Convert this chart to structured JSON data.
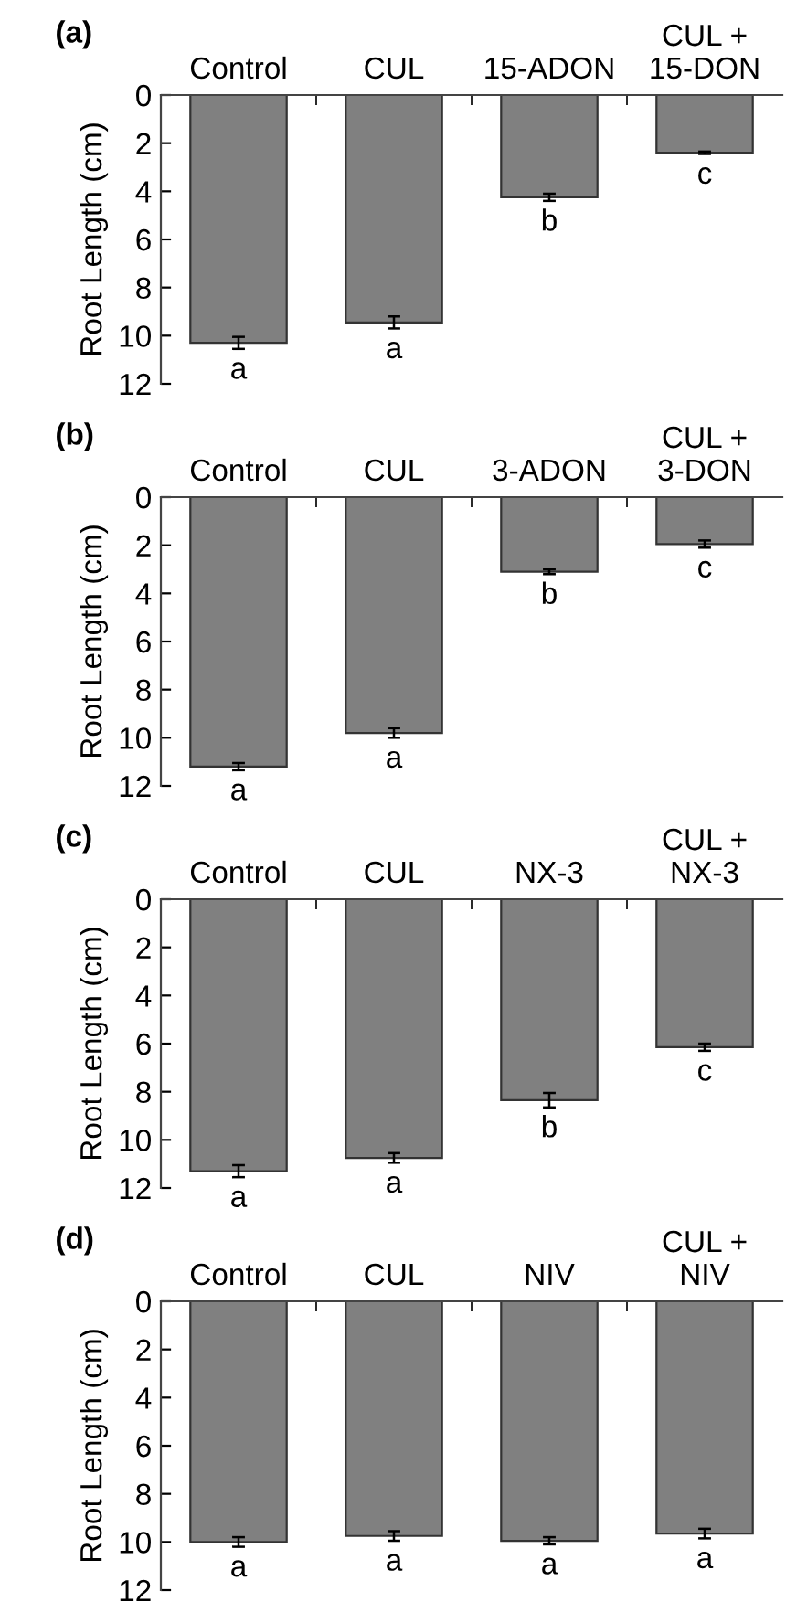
{
  "chart_data": [
    {
      "type": "bar",
      "title": "(a)",
      "ylabel": "Root Length (cm)",
      "categories": [
        "Control",
        "CUL",
        "15-ADON",
        "CUL +\n15-DON"
      ],
      "values": [
        10.3,
        9.45,
        4.25,
        2.4
      ],
      "errors": [
        0.25,
        0.25,
        0.15,
        0.05
      ],
      "color": "#808080",
      "ylim": [
        12,
        0
      ],
      "yticks": [
        0,
        2,
        4,
        6,
        8,
        10,
        12
      ],
      "grid": false,
      "annotations": [
        {
          "text": "a",
          "x": "Control",
          "y": 10.3
        },
        {
          "text": "a",
          "x": "CUL",
          "y": 9.45
        },
        {
          "text": "b",
          "x": "15-ADON",
          "y": 4.25
        },
        {
          "text": "c",
          "x": "CUL +\n15-DON",
          "y": 2.4
        }
      ]
    },
    {
      "type": "bar",
      "title": "(b)",
      "ylabel": "Root Length (cm)",
      "categories": [
        "Control",
        "CUL",
        "3-ADON",
        "CUL +\n3-DON"
      ],
      "values": [
        11.2,
        9.8,
        3.1,
        1.95
      ],
      "errors": [
        0.15,
        0.2,
        0.1,
        0.15
      ],
      "color": "#808080",
      "ylim": [
        12,
        0
      ],
      "yticks": [
        0,
        2,
        4,
        6,
        8,
        10,
        12
      ],
      "grid": false,
      "annotations": [
        {
          "text": "a",
          "x": "Control",
          "y": 11.2
        },
        {
          "text": "a",
          "x": "CUL",
          "y": 9.8
        },
        {
          "text": "b",
          "x": "3-ADON",
          "y": 3.1
        },
        {
          "text": "c",
          "x": "CUL +\n3-DON",
          "y": 1.95
        }
      ]
    },
    {
      "type": "bar",
      "title": "(c)",
      "ylabel": "Root Length (cm)",
      "categories": [
        "Control",
        "CUL",
        "NX-3",
        "CUL +\nNX-3"
      ],
      "values": [
        11.3,
        10.75,
        8.35,
        6.15
      ],
      "errors": [
        0.25,
        0.2,
        0.3,
        0.15
      ],
      "color": "#808080",
      "ylim": [
        12,
        0
      ],
      "yticks": [
        0,
        2,
        4,
        6,
        8,
        10,
        12
      ],
      "grid": false,
      "annotations": [
        {
          "text": "a",
          "x": "Control",
          "y": 11.3
        },
        {
          "text": "a",
          "x": "CUL",
          "y": 10.75
        },
        {
          "text": "b",
          "x": "NX-3",
          "y": 8.35
        },
        {
          "text": "c",
          "x": "CUL +\nNX-3",
          "y": 6.15
        }
      ]
    },
    {
      "type": "bar",
      "title": "(d)",
      "ylabel": "Root Length (cm)",
      "categories": [
        "Control",
        "CUL",
        "NIV",
        "CUL +\nNIV"
      ],
      "values": [
        10.0,
        9.75,
        9.95,
        9.65
      ],
      "errors": [
        0.2,
        0.2,
        0.15,
        0.2
      ],
      "color": "#808080",
      "ylim": [
        12,
        0
      ],
      "yticks": [
        0,
        2,
        4,
        6,
        8,
        10,
        12
      ],
      "grid": false,
      "annotations": [
        {
          "text": "a",
          "x": "Control",
          "y": 10.0
        },
        {
          "text": "a",
          "x": "CUL",
          "y": 9.75
        },
        {
          "text": "a",
          "x": "NIV",
          "y": 9.95
        },
        {
          "text": "a",
          "x": "CUL +\nNIV",
          "y": 9.65
        }
      ]
    }
  ]
}
